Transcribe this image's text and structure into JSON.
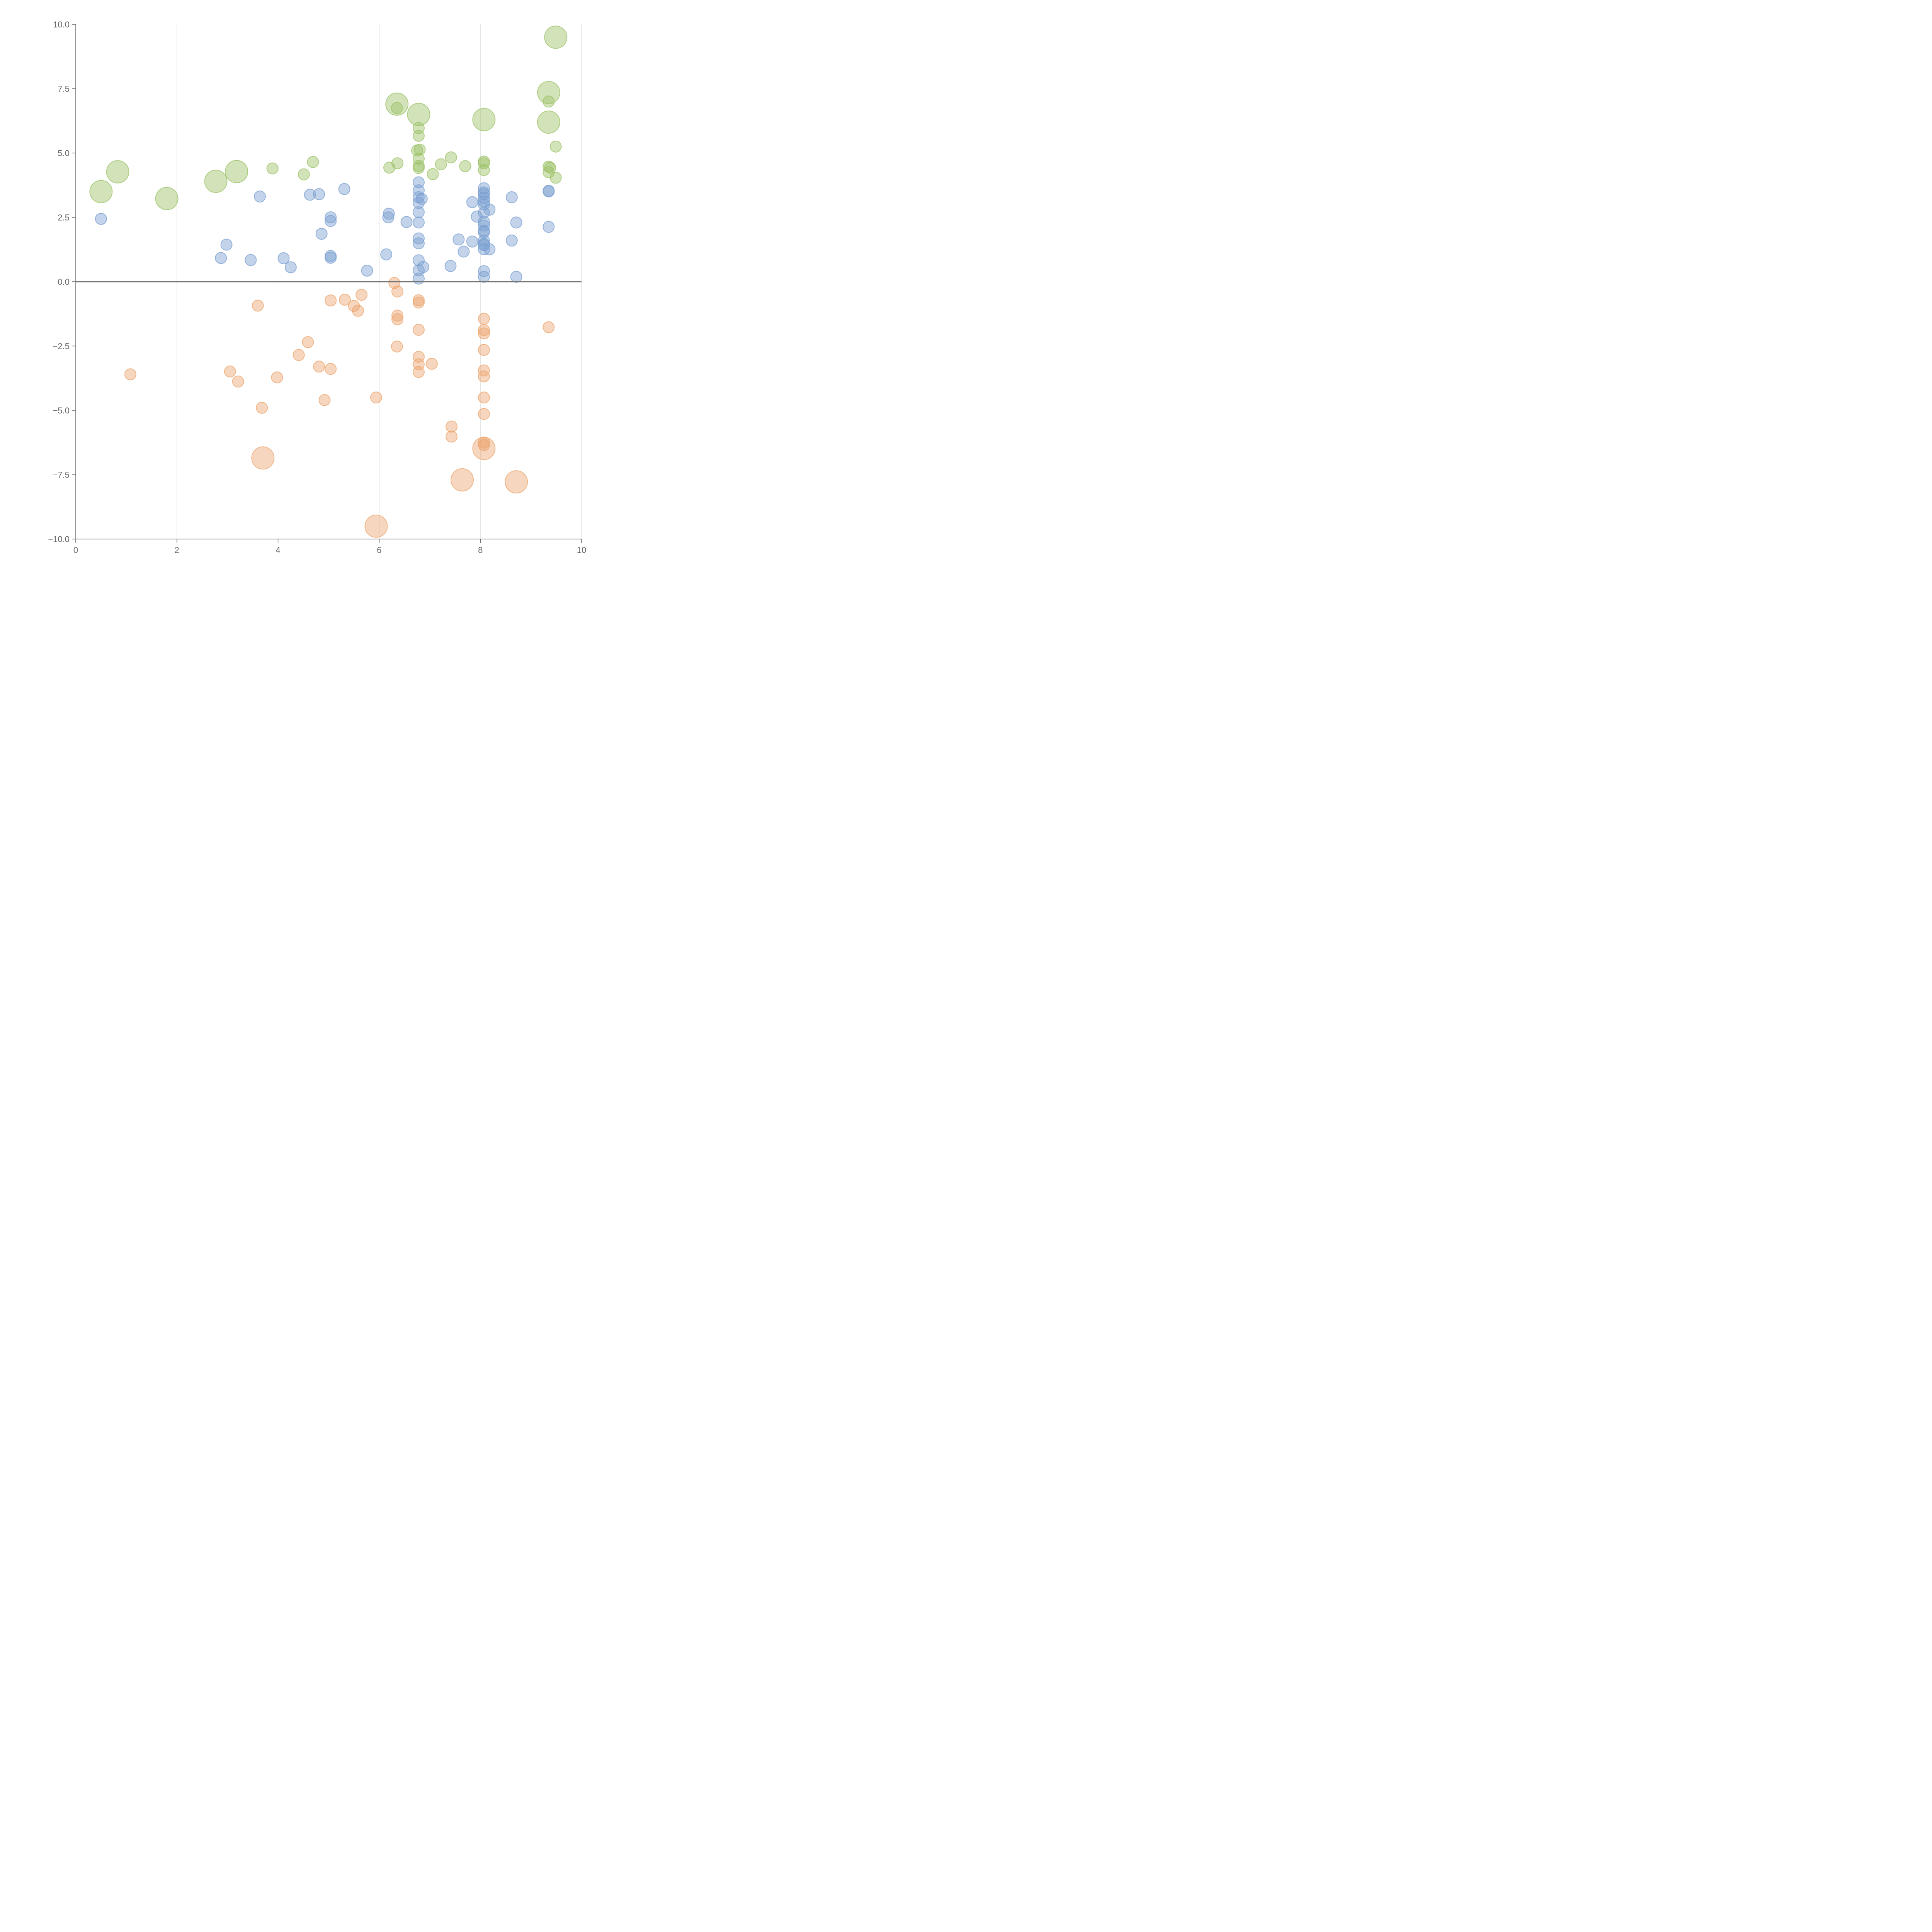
{
  "chart_data": {
    "type": "scatter",
    "title": "",
    "xlabel": "",
    "ylabel": "",
    "xlim": [
      0,
      10
    ],
    "ylim": [
      -10,
      10
    ],
    "x_ticks": [
      0,
      2,
      4,
      6,
      8,
      10
    ],
    "x_tick_labels": [
      "0",
      "2",
      "4",
      "6",
      "8",
      "10"
    ],
    "y_ticks": [
      -10,
      -7.5,
      -5,
      -2.5,
      0,
      2.5,
      5,
      7.5,
      10
    ],
    "y_tick_labels": [
      "−10.0",
      "−7.5",
      "−5.0",
      "−2.5",
      "0.0",
      "2.5",
      "5.0",
      "7.5",
      "10.0"
    ],
    "vertical_grid": true,
    "zero_line": true,
    "series": [
      {
        "name": "green",
        "color": "#9cc267",
        "points": [
          {
            "x": 0.5,
            "y": 3.5,
            "s": 2
          },
          {
            "x": 0.83,
            "y": 4.27,
            "s": 2
          },
          {
            "x": 1.8,
            "y": 3.23,
            "s": 2
          },
          {
            "x": 2.77,
            "y": 3.9,
            "s": 2
          },
          {
            "x": 3.18,
            "y": 4.28,
            "s": 2
          },
          {
            "x": 3.89,
            "y": 4.4,
            "s": 1
          },
          {
            "x": 4.51,
            "y": 4.17,
            "s": 1
          },
          {
            "x": 4.69,
            "y": 4.65,
            "s": 1
          },
          {
            "x": 6.2,
            "y": 4.43,
            "s": 1
          },
          {
            "x": 6.35,
            "y": 6.9,
            "s": 2
          },
          {
            "x": 6.35,
            "y": 6.75,
            "s": 1
          },
          {
            "x": 6.36,
            "y": 4.6,
            "s": 1
          },
          {
            "x": 6.78,
            "y": 6.5,
            "s": 2
          },
          {
            "x": 6.78,
            "y": 5.97,
            "s": 1
          },
          {
            "x": 6.78,
            "y": 5.67,
            "s": 1
          },
          {
            "x": 6.75,
            "y": 5.1,
            "s": 1
          },
          {
            "x": 6.8,
            "y": 5.13,
            "s": 1
          },
          {
            "x": 6.78,
            "y": 4.78,
            "s": 1
          },
          {
            "x": 6.78,
            "y": 4.5,
            "s": 1
          },
          {
            "x": 6.78,
            "y": 4.42,
            "s": 1
          },
          {
            "x": 7.06,
            "y": 4.18,
            "s": 1
          },
          {
            "x": 7.22,
            "y": 4.56,
            "s": 1
          },
          {
            "x": 7.42,
            "y": 4.83,
            "s": 1
          },
          {
            "x": 7.7,
            "y": 4.49,
            "s": 1
          },
          {
            "x": 8.07,
            "y": 6.3,
            "s": 2
          },
          {
            "x": 8.07,
            "y": 4.67,
            "s": 1
          },
          {
            "x": 8.07,
            "y": 4.6,
            "s": 1
          },
          {
            "x": 8.07,
            "y": 4.34,
            "s": 1
          },
          {
            "x": 9.35,
            "y": 7.35,
            "s": 2
          },
          {
            "x": 9.35,
            "y": 7.0,
            "s": 1
          },
          {
            "x": 9.35,
            "y": 6.2,
            "s": 2
          },
          {
            "x": 9.35,
            "y": 4.47,
            "s": 1
          },
          {
            "x": 9.38,
            "y": 4.43,
            "s": 1
          },
          {
            "x": 9.35,
            "y": 4.25,
            "s": 1
          },
          {
            "x": 9.49,
            "y": 5.25,
            "s": 1
          },
          {
            "x": 9.49,
            "y": 4.04,
            "s": 1
          },
          {
            "x": 9.49,
            "y": 9.5,
            "s": 2
          }
        ]
      },
      {
        "name": "blue",
        "color": "#7b9fd1",
        "points": [
          {
            "x": 0.5,
            "y": 2.44,
            "s": 1
          },
          {
            "x": 2.87,
            "y": 0.92,
            "s": 1
          },
          {
            "x": 2.98,
            "y": 1.44,
            "s": 1
          },
          {
            "x": 3.46,
            "y": 0.84,
            "s": 1
          },
          {
            "x": 3.64,
            "y": 3.31,
            "s": 1
          },
          {
            "x": 4.11,
            "y": 0.91,
            "s": 1
          },
          {
            "x": 4.25,
            "y": 0.56,
            "s": 1
          },
          {
            "x": 4.63,
            "y": 3.38,
            "s": 1
          },
          {
            "x": 4.81,
            "y": 3.4,
            "s": 1
          },
          {
            "x": 4.86,
            "y": 1.86,
            "s": 1
          },
          {
            "x": 5.04,
            "y": 2.5,
            "s": 1
          },
          {
            "x": 5.04,
            "y": 2.36,
            "s": 1
          },
          {
            "x": 5.04,
            "y": 1.0,
            "s": 1
          },
          {
            "x": 5.04,
            "y": 0.93,
            "s": 1
          },
          {
            "x": 5.31,
            "y": 3.6,
            "s": 1
          },
          {
            "x": 5.76,
            "y": 0.43,
            "s": 1
          },
          {
            "x": 6.14,
            "y": 1.06,
            "s": 1
          },
          {
            "x": 6.19,
            "y": 2.64,
            "s": 1
          },
          {
            "x": 6.18,
            "y": 2.5,
            "s": 1
          },
          {
            "x": 6.54,
            "y": 2.32,
            "s": 1
          },
          {
            "x": 6.78,
            "y": 3.86,
            "s": 1
          },
          {
            "x": 6.78,
            "y": 3.55,
            "s": 1
          },
          {
            "x": 6.78,
            "y": 3.28,
            "s": 1
          },
          {
            "x": 6.78,
            "y": 3.06,
            "s": 1
          },
          {
            "x": 6.84,
            "y": 3.22,
            "s": 1
          },
          {
            "x": 6.78,
            "y": 2.7,
            "s": 1
          },
          {
            "x": 6.78,
            "y": 2.3,
            "s": 1
          },
          {
            "x": 6.78,
            "y": 1.68,
            "s": 1
          },
          {
            "x": 6.78,
            "y": 1.49,
            "s": 1
          },
          {
            "x": 6.78,
            "y": 0.83,
            "s": 1
          },
          {
            "x": 6.78,
            "y": 0.44,
            "s": 1
          },
          {
            "x": 6.87,
            "y": 0.57,
            "s": 1
          },
          {
            "x": 6.78,
            "y": 0.12,
            "s": 1
          },
          {
            "x": 7.41,
            "y": 0.61,
            "s": 1
          },
          {
            "x": 7.57,
            "y": 1.64,
            "s": 1
          },
          {
            "x": 7.67,
            "y": 1.17,
            "s": 1
          },
          {
            "x": 7.84,
            "y": 3.09,
            "s": 1
          },
          {
            "x": 7.84,
            "y": 1.56,
            "s": 1
          },
          {
            "x": 7.93,
            "y": 2.53,
            "s": 1
          },
          {
            "x": 8.07,
            "y": 3.63,
            "s": 1
          },
          {
            "x": 8.07,
            "y": 3.47,
            "s": 1
          },
          {
            "x": 8.07,
            "y": 3.4,
            "s": 1
          },
          {
            "x": 8.07,
            "y": 3.25,
            "s": 1
          },
          {
            "x": 8.07,
            "y": 3.12,
            "s": 1
          },
          {
            "x": 8.07,
            "y": 3.0,
            "s": 1
          },
          {
            "x": 8.07,
            "y": 2.68,
            "s": 1
          },
          {
            "x": 8.18,
            "y": 2.8,
            "s": 1
          },
          {
            "x": 8.07,
            "y": 2.33,
            "s": 1
          },
          {
            "x": 8.07,
            "y": 2.18,
            "s": 1
          },
          {
            "x": 8.07,
            "y": 1.98,
            "s": 1
          },
          {
            "x": 8.07,
            "y": 1.92,
            "s": 1
          },
          {
            "x": 8.07,
            "y": 1.6,
            "s": 1
          },
          {
            "x": 8.07,
            "y": 1.47,
            "s": 1
          },
          {
            "x": 8.07,
            "y": 1.42,
            "s": 1
          },
          {
            "x": 8.07,
            "y": 1.26,
            "s": 1
          },
          {
            "x": 8.18,
            "y": 1.26,
            "s": 1
          },
          {
            "x": 8.07,
            "y": 0.41,
            "s": 1
          },
          {
            "x": 8.07,
            "y": 0.19,
            "s": 1
          },
          {
            "x": 8.62,
            "y": 3.28,
            "s": 1
          },
          {
            "x": 8.62,
            "y": 1.6,
            "s": 1
          },
          {
            "x": 8.71,
            "y": 2.3,
            "s": 1
          },
          {
            "x": 8.71,
            "y": 0.19,
            "s": 1
          },
          {
            "x": 9.35,
            "y": 3.53,
            "s": 1
          },
          {
            "x": 9.35,
            "y": 3.51,
            "s": 1
          },
          {
            "x": 9.35,
            "y": 2.13,
            "s": 1
          }
        ]
      },
      {
        "name": "orange",
        "color": "#eca56e",
        "points": [
          {
            "x": 1.08,
            "y": -3.6,
            "s": 1
          },
          {
            "x": 3.05,
            "y": -3.49,
            "s": 1
          },
          {
            "x": 3.21,
            "y": -3.88,
            "s": 1
          },
          {
            "x": 3.6,
            "y": -0.93,
            "s": 1
          },
          {
            "x": 3.68,
            "y": -4.9,
            "s": 1
          },
          {
            "x": 3.7,
            "y": -6.85,
            "s": 2
          },
          {
            "x": 3.98,
            "y": -3.72,
            "s": 1
          },
          {
            "x": 4.41,
            "y": -2.85,
            "s": 1
          },
          {
            "x": 4.59,
            "y": -2.35,
            "s": 1
          },
          {
            "x": 4.81,
            "y": -3.3,
            "s": 1
          },
          {
            "x": 4.92,
            "y": -4.6,
            "s": 1
          },
          {
            "x": 5.04,
            "y": -0.73,
            "s": 1
          },
          {
            "x": 5.04,
            "y": -3.39,
            "s": 1
          },
          {
            "x": 5.32,
            "y": -0.7,
            "s": 1
          },
          {
            "x": 5.5,
            "y": -0.94,
            "s": 1
          },
          {
            "x": 5.58,
            "y": -1.13,
            "s": 1
          },
          {
            "x": 5.65,
            "y": -0.51,
            "s": 1
          },
          {
            "x": 5.94,
            "y": -4.5,
            "s": 1
          },
          {
            "x": 5.94,
            "y": -9.5,
            "s": 2
          },
          {
            "x": 6.3,
            "y": -0.05,
            "s": 1
          },
          {
            "x": 6.36,
            "y": -0.38,
            "s": 1
          },
          {
            "x": 6.36,
            "y": -1.32,
            "s": 1
          },
          {
            "x": 6.36,
            "y": -1.46,
            "s": 1
          },
          {
            "x": 6.35,
            "y": -2.52,
            "s": 1
          },
          {
            "x": 6.78,
            "y": -0.72,
            "s": 1
          },
          {
            "x": 6.78,
            "y": -0.81,
            "s": 1
          },
          {
            "x": 6.78,
            "y": -1.87,
            "s": 1
          },
          {
            "x": 6.78,
            "y": -2.92,
            "s": 1
          },
          {
            "x": 6.78,
            "y": -3.21,
            "s": 1
          },
          {
            "x": 6.78,
            "y": -3.51,
            "s": 1
          },
          {
            "x": 7.04,
            "y": -3.19,
            "s": 1
          },
          {
            "x": 7.43,
            "y": -5.63,
            "s": 1
          },
          {
            "x": 7.43,
            "y": -6.02,
            "s": 1
          },
          {
            "x": 7.64,
            "y": -7.7,
            "s": 2
          },
          {
            "x": 8.07,
            "y": -1.44,
            "s": 1
          },
          {
            "x": 8.07,
            "y": -1.88,
            "s": 1
          },
          {
            "x": 8.07,
            "y": -2.01,
            "s": 1
          },
          {
            "x": 8.07,
            "y": -2.65,
            "s": 1
          },
          {
            "x": 8.07,
            "y": -3.45,
            "s": 1
          },
          {
            "x": 8.07,
            "y": -3.68,
            "s": 1
          },
          {
            "x": 8.07,
            "y": -4.5,
            "s": 1
          },
          {
            "x": 8.07,
            "y": -5.14,
            "s": 1
          },
          {
            "x": 8.07,
            "y": -6.25,
            "s": 1
          },
          {
            "x": 8.07,
            "y": -6.35,
            "s": 1
          },
          {
            "x": 8.07,
            "y": -6.48,
            "s": 2
          },
          {
            "x": 8.71,
            "y": -7.78,
            "s": 2
          },
          {
            "x": 9.35,
            "y": -1.77,
            "s": 1
          }
        ]
      }
    ]
  }
}
